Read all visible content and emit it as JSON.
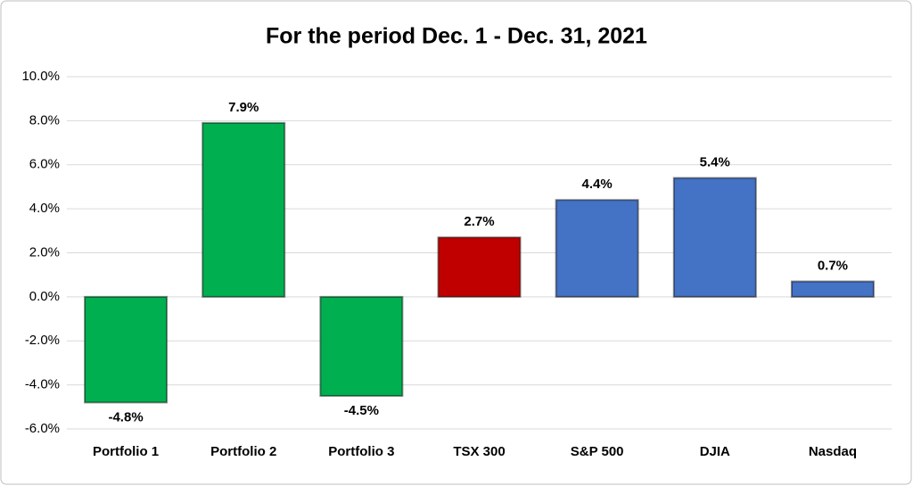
{
  "chart_data": {
    "type": "bar",
    "title": "For the period Dec. 1 - Dec. 31, 2021",
    "categories": [
      "Portfolio 1",
      "Portfolio 2",
      "Portfolio 3",
      "TSX 300",
      "S&P 500",
      "DJIA",
      "Nasdaq"
    ],
    "values": [
      -4.8,
      7.9,
      -4.5,
      2.7,
      4.4,
      5.4,
      0.7
    ],
    "value_labels": [
      "-4.8%",
      "7.9%",
      "-4.5%",
      "2.7%",
      "4.4%",
      "5.4%",
      "0.7%"
    ],
    "colors": [
      "#00b050",
      "#00b050",
      "#00b050",
      "#c00000",
      "#4472c4",
      "#4472c4",
      "#4472c4"
    ],
    "ylim": [
      -6,
      10
    ],
    "yticks": [
      {
        "value": -6,
        "label": "-6.0%"
      },
      {
        "value": -4,
        "label": "-4.0%"
      },
      {
        "value": -2,
        "label": "-2.0%"
      },
      {
        "value": 0,
        "label": "0.0%"
      },
      {
        "value": 2,
        "label": "2.0%"
      },
      {
        "value": 4,
        "label": "4.0%"
      },
      {
        "value": 6,
        "label": "6.0%"
      },
      {
        "value": 8,
        "label": "8.0%"
      },
      {
        "value": 10,
        "label": "10.0%"
      }
    ],
    "grid": true
  }
}
